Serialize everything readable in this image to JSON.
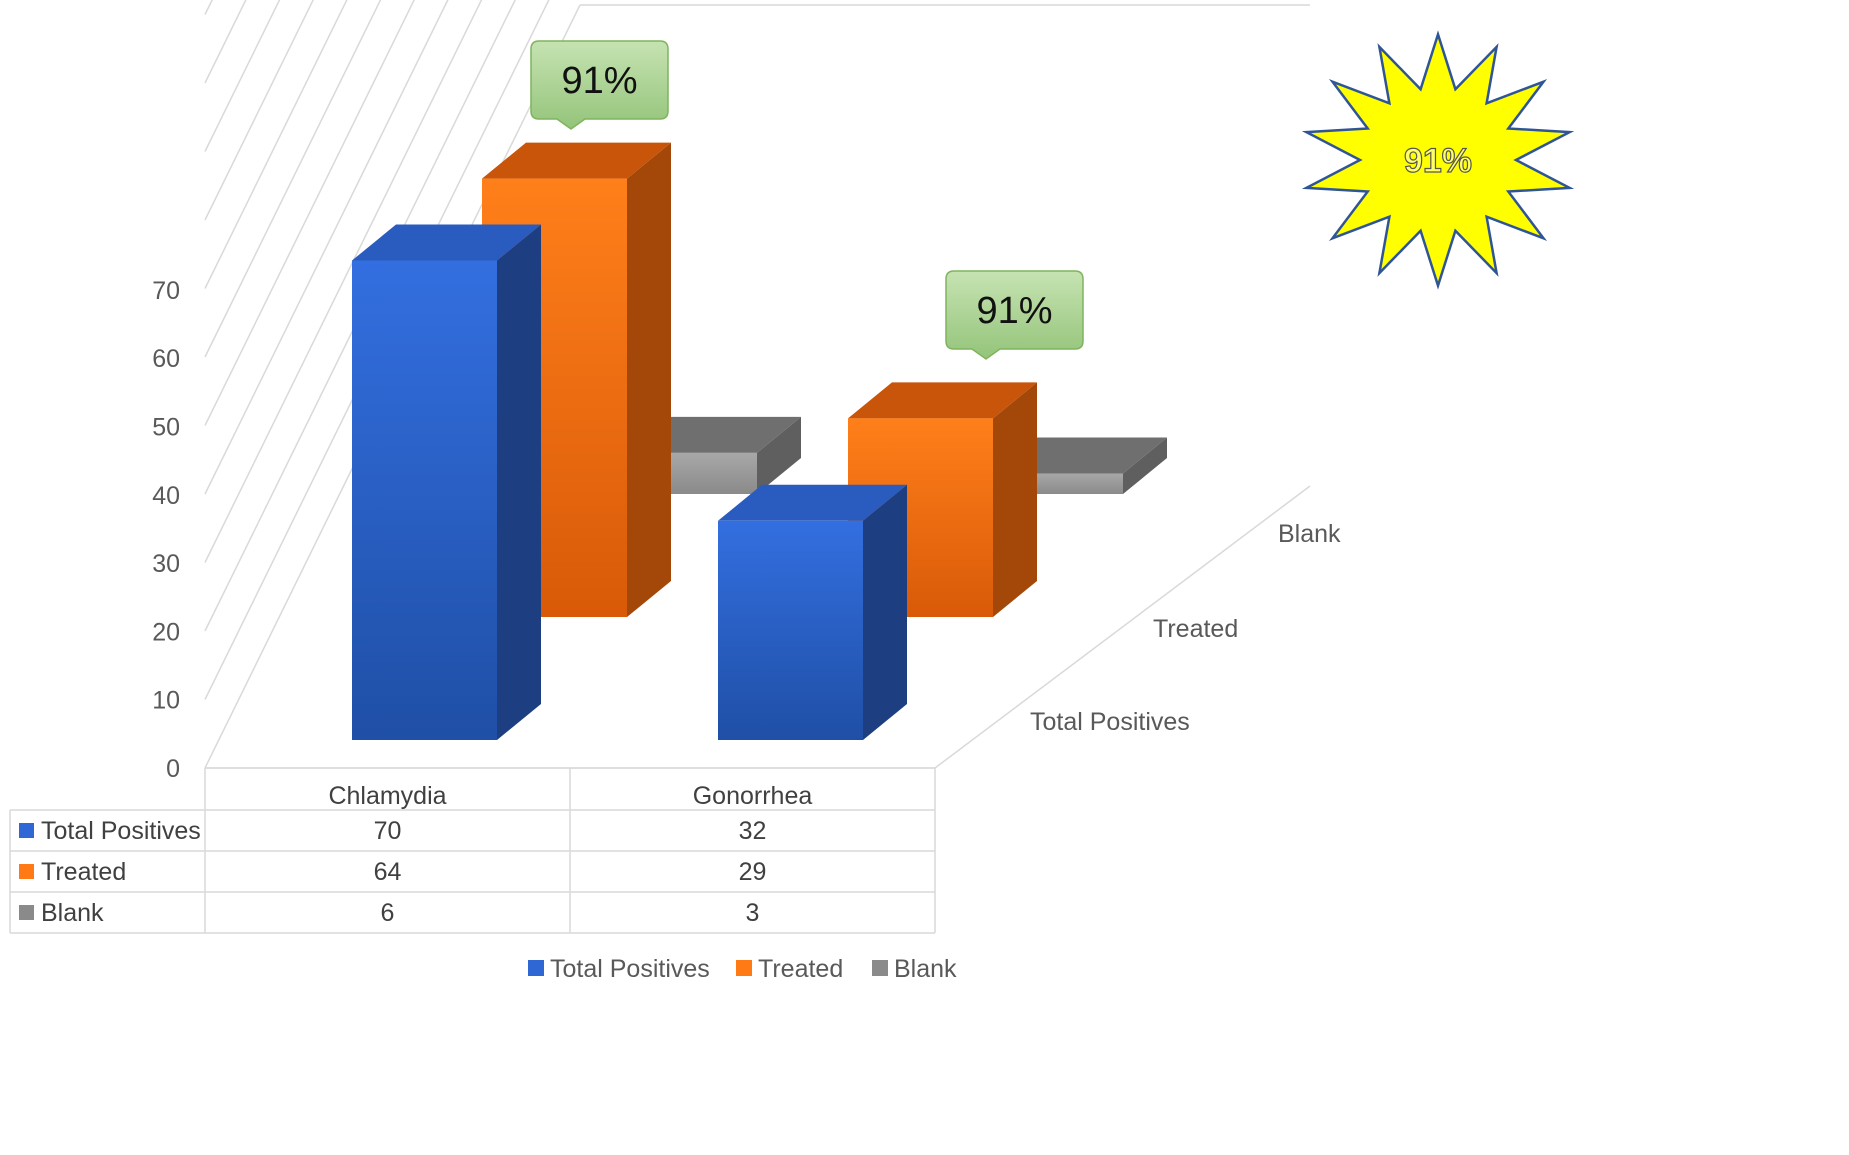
{
  "chart_data": {
    "type": "bar",
    "variant": "3d-clustered-with-data-table",
    "categories": [
      "Chlamydia",
      "Gonorrhea"
    ],
    "series": [
      {
        "name": "Total Positives",
        "values": [
          70,
          32
        ],
        "color": "#2f67d4"
      },
      {
        "name": "Treated",
        "values": [
          64,
          29
        ],
        "color": "#ff7a14"
      },
      {
        "name": "Blank",
        "values": [
          6,
          3
        ],
        "color": "#8a8a8a"
      }
    ],
    "depth_labels": [
      "Total Positives",
      "Treated",
      "Blank"
    ],
    "y_ticks": [
      "0",
      "10",
      "20",
      "30",
      "40",
      "50",
      "60",
      "70"
    ],
    "ylim": [
      0,
      70
    ],
    "grid": true,
    "legend_position": "bottom",
    "callouts": [
      {
        "text": "91%",
        "category": "Chlamydia",
        "color": "#a9d18e"
      },
      {
        "text": "91%",
        "category": "Gonorrhea",
        "color": "#a9d18e"
      }
    ],
    "starburst": {
      "text": "91%",
      "fill": "#ffff00",
      "stroke": "#2f5597"
    }
  }
}
